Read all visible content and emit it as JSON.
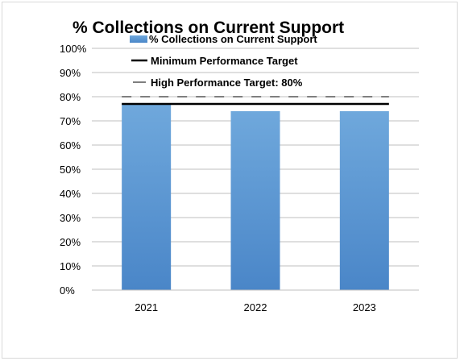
{
  "chart_data": {
    "type": "bar",
    "title": "% Collections on Current Support",
    "categories": [
      "2021",
      "2022",
      "2023"
    ],
    "series": [
      {
        "name": "% Collections on Current Support",
        "values": [
          77,
          74,
          74
        ],
        "color": "#5b9bd5"
      }
    ],
    "reference_lines": [
      {
        "name": "Minimum Performance Target",
        "value": 77,
        "style": "solid",
        "color": "#000000"
      },
      {
        "name": "High Performance Target: 80%",
        "value": 80,
        "style": "dashed",
        "color": "#7f7f7f"
      }
    ],
    "y_ticks": [
      "0%",
      "10%",
      "20%",
      "30%",
      "40%",
      "50%",
      "60%",
      "70%",
      "80%",
      "90%",
      "100%"
    ],
    "ylim": [
      0,
      100
    ],
    "grid": true,
    "legend_position": "top"
  }
}
